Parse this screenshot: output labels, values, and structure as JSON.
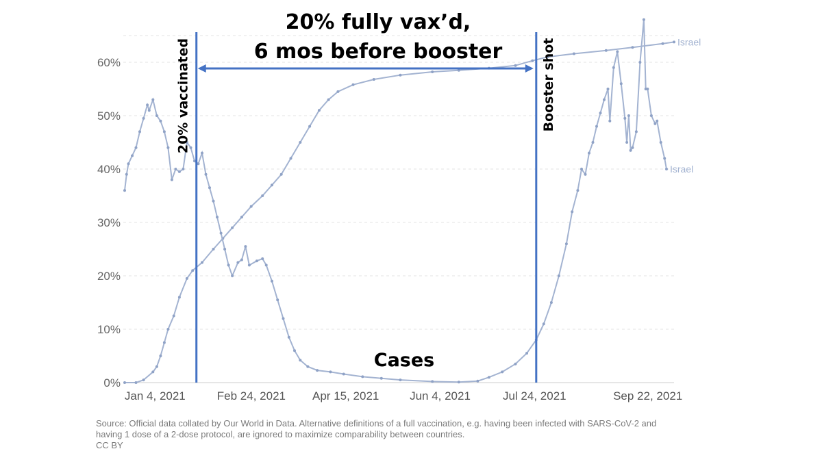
{
  "chart_data": {
    "type": "line",
    "title_lines": [
      "20% fully vax’d,",
      "6 mos before booster"
    ],
    "xlabel": "",
    "ylabel": "",
    "ylim": [
      0,
      65
    ],
    "y_ticks": [
      0,
      10,
      20,
      30,
      40,
      50,
      60
    ],
    "y_tick_labels": [
      "0%",
      "10%",
      "20%",
      "30%",
      "40%",
      "50%",
      "60%"
    ],
    "x_tick_labels": [
      "Jan 4, 2021",
      "Feb 24, 2021",
      "Apr 15, 2021",
      "Jun 4, 2021",
      "Jul 24, 2021",
      "Sep 22, 2021"
    ],
    "x_range": [
      "2020-12-20",
      "2021-10-07"
    ],
    "grid": true,
    "series": [
      {
        "name": "Israel",
        "role": "vaccinated",
        "color": "#a3b3d1",
        "points": [
          [
            "2020-12-20",
            0
          ],
          [
            "2020-12-26",
            0
          ],
          [
            "2020-12-30",
            0.5
          ],
          [
            "2021-01-04",
            2
          ],
          [
            "2021-01-06",
            3
          ],
          [
            "2021-01-08",
            5
          ],
          [
            "2021-01-10",
            7.5
          ],
          [
            "2021-01-12",
            10
          ],
          [
            "2021-01-15",
            12.5
          ],
          [
            "2021-01-18",
            16
          ],
          [
            "2021-01-22",
            19.5
          ],
          [
            "2021-01-25",
            21
          ],
          [
            "2021-01-30",
            22.5
          ],
          [
            "2021-02-05",
            25
          ],
          [
            "2021-02-10",
            27
          ],
          [
            "2021-02-15",
            29
          ],
          [
            "2021-02-20",
            31
          ],
          [
            "2021-02-25",
            33
          ],
          [
            "2021-03-03",
            35
          ],
          [
            "2021-03-08",
            37
          ],
          [
            "2021-03-13",
            39
          ],
          [
            "2021-03-18",
            42
          ],
          [
            "2021-03-23",
            45
          ],
          [
            "2021-03-28",
            48
          ],
          [
            "2021-04-02",
            51
          ],
          [
            "2021-04-07",
            53
          ],
          [
            "2021-04-12",
            54.5
          ],
          [
            "2021-04-20",
            55.8
          ],
          [
            "2021-05-01",
            56.8
          ],
          [
            "2021-05-15",
            57.6
          ],
          [
            "2021-06-01",
            58.2
          ],
          [
            "2021-06-15",
            58.5
          ],
          [
            "2021-07-01",
            58.9
          ],
          [
            "2021-07-15",
            59.4
          ],
          [
            "2021-07-24",
            60.3
          ],
          [
            "2021-08-01",
            61
          ],
          [
            "2021-08-15",
            61.6
          ],
          [
            "2021-09-01",
            62.2
          ],
          [
            "2021-09-15",
            62.8
          ],
          [
            "2021-10-01",
            63.5
          ],
          [
            "2021-10-07",
            63.8
          ]
        ]
      },
      {
        "name": "Israel",
        "role": "cases",
        "color": "#a3b3d1",
        "points": [
          [
            "2020-12-20",
            36
          ],
          [
            "2020-12-21",
            39
          ],
          [
            "2020-12-22",
            41
          ],
          [
            "2020-12-24",
            42.5
          ],
          [
            "2020-12-26",
            44
          ],
          [
            "2020-12-28",
            47
          ],
          [
            "2020-12-30",
            49.5
          ],
          [
            "2021-01-01",
            52
          ],
          [
            "2021-01-02",
            51
          ],
          [
            "2021-01-04",
            53
          ],
          [
            "2021-01-06",
            50
          ],
          [
            "2021-01-08",
            49
          ],
          [
            "2021-01-10",
            47
          ],
          [
            "2021-01-12",
            44
          ],
          [
            "2021-01-14",
            38
          ],
          [
            "2021-01-16",
            40
          ],
          [
            "2021-01-18",
            39.5
          ],
          [
            "2021-01-20",
            40
          ],
          [
            "2021-01-22",
            45
          ],
          [
            "2021-01-24",
            44
          ],
          [
            "2021-01-26",
            41.5
          ],
          [
            "2021-01-28",
            41
          ],
          [
            "2021-01-30",
            43
          ],
          [
            "2021-02-01",
            39
          ],
          [
            "2021-02-03",
            36.5
          ],
          [
            "2021-02-05",
            34
          ],
          [
            "2021-02-07",
            31
          ],
          [
            "2021-02-09",
            28
          ],
          [
            "2021-02-11",
            25
          ],
          [
            "2021-02-13",
            22
          ],
          [
            "2021-02-15",
            20
          ],
          [
            "2021-02-18",
            22.5
          ],
          [
            "2021-02-20",
            23
          ],
          [
            "2021-02-22",
            25.5
          ],
          [
            "2021-02-24",
            22
          ],
          [
            "2021-02-28",
            22.8
          ],
          [
            "2021-03-03",
            23.2
          ],
          [
            "2021-03-05",
            22
          ],
          [
            "2021-03-08",
            19
          ],
          [
            "2021-03-11",
            15.5
          ],
          [
            "2021-03-14",
            12
          ],
          [
            "2021-03-17",
            8.5
          ],
          [
            "2021-03-20",
            6
          ],
          [
            "2021-03-23",
            4.2
          ],
          [
            "2021-03-27",
            3
          ],
          [
            "2021-04-01",
            2.3
          ],
          [
            "2021-04-08",
            2
          ],
          [
            "2021-04-15",
            1.6
          ],
          [
            "2021-04-25",
            1.1
          ],
          [
            "2021-05-05",
            0.8
          ],
          [
            "2021-05-15",
            0.5
          ],
          [
            "2021-06-01",
            0.2
          ],
          [
            "2021-06-15",
            0.1
          ],
          [
            "2021-06-25",
            0.3
          ],
          [
            "2021-07-01",
            1
          ],
          [
            "2021-07-08",
            2
          ],
          [
            "2021-07-15",
            3.5
          ],
          [
            "2021-07-21",
            5.5
          ],
          [
            "2021-07-26",
            8
          ],
          [
            "2021-07-30",
            11
          ],
          [
            "2021-08-03",
            15
          ],
          [
            "2021-08-07",
            20
          ],
          [
            "2021-08-11",
            26
          ],
          [
            "2021-08-14",
            32
          ],
          [
            "2021-08-17",
            36
          ],
          [
            "2021-08-19",
            40
          ],
          [
            "2021-08-21",
            39
          ],
          [
            "2021-08-23",
            43
          ],
          [
            "2021-08-25",
            45
          ],
          [
            "2021-08-27",
            48
          ],
          [
            "2021-08-29",
            50.5
          ],
          [
            "2021-08-31",
            53
          ],
          [
            "2021-09-02",
            55
          ],
          [
            "2021-09-03",
            49
          ],
          [
            "2021-09-05",
            59
          ],
          [
            "2021-09-07",
            62
          ],
          [
            "2021-09-09",
            56
          ],
          [
            "2021-09-11",
            49.5
          ],
          [
            "2021-09-12",
            45
          ],
          [
            "2021-09-13",
            50
          ],
          [
            "2021-09-14",
            43.5
          ],
          [
            "2021-09-15",
            44
          ],
          [
            "2021-09-17",
            47
          ],
          [
            "2021-09-19",
            60
          ],
          [
            "2021-09-21",
            68
          ],
          [
            "2021-09-22",
            55
          ],
          [
            "2021-09-23",
            55
          ],
          [
            "2021-09-25",
            50
          ],
          [
            "2021-09-27",
            48.5
          ],
          [
            "2021-09-28",
            49
          ],
          [
            "2021-09-30",
            45
          ],
          [
            "2021-10-02",
            42
          ],
          [
            "2021-10-03",
            40
          ]
        ]
      }
    ],
    "markers": [
      {
        "date": "2021-01-27",
        "label": "20% vaccinated"
      },
      {
        "date": "2021-07-26",
        "label": "Booster shot"
      }
    ],
    "span": {
      "from": "2021-01-27",
      "to": "2021-07-26"
    },
    "annotations": {
      "cases_label": "Cases"
    }
  },
  "source_note": {
    "line1": "Source: Official data collated by Our World in Data. Alternative definitions of a full vaccination, e.g. having been infected with SARS-CoV-2 and",
    "line2": "having 1 dose of a 2-dose protocol, are ignored to maximize comparability between countries.",
    "line3": "CC BY"
  }
}
